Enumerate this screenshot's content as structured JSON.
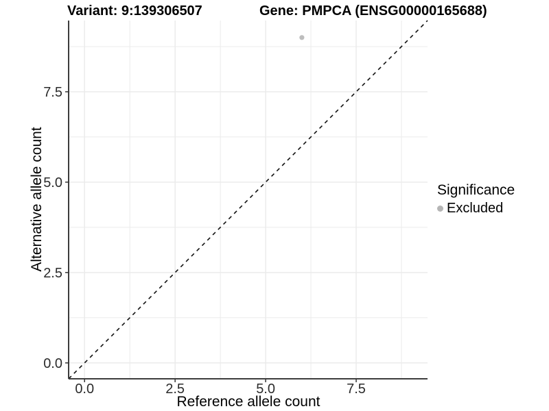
{
  "page": {
    "background": "#ffffff"
  },
  "chart_data": {
    "type": "scatter",
    "title_left": "Variant: 9:139306507",
    "title_right": "Gene: PMPCA (ENSG00000165688)",
    "xlabel": "Reference allele count",
    "ylabel": "Alternative allele count",
    "x_ticks": {
      "values": [
        0,
        2.5,
        5,
        7.5
      ],
      "labels": [
        "0.0",
        "2.5",
        "5.0",
        "7.5"
      ]
    },
    "y_ticks": {
      "values": [
        0,
        2.5,
        5,
        7.5
      ],
      "labels": [
        "0.0",
        "2.5",
        "5.0",
        "7.5"
      ]
    },
    "minor_breaks": [
      1.25,
      3.75,
      6.25,
      8.75
    ],
    "xlim": [
      -0.44,
      9.47
    ],
    "ylim": [
      -0.44,
      9.47
    ],
    "grid": true,
    "points": [
      {
        "x": 6,
        "y": 9,
        "significance": "Excluded"
      }
    ],
    "reference_line": {
      "type": "identity",
      "slope": 1,
      "intercept": 0,
      "linetype": "dashed"
    },
    "legend": {
      "title": "Significance",
      "position": "right",
      "items": [
        {
          "label": "Excluded",
          "color": "#b5b5b5"
        }
      ]
    },
    "colors": {
      "point": "#bdbdbd",
      "grid": "#ebebeb",
      "axis": "#3c3c3c",
      "tick": "#333333",
      "tick_text": "#2b2b2b",
      "reference_line": "#111111"
    }
  }
}
